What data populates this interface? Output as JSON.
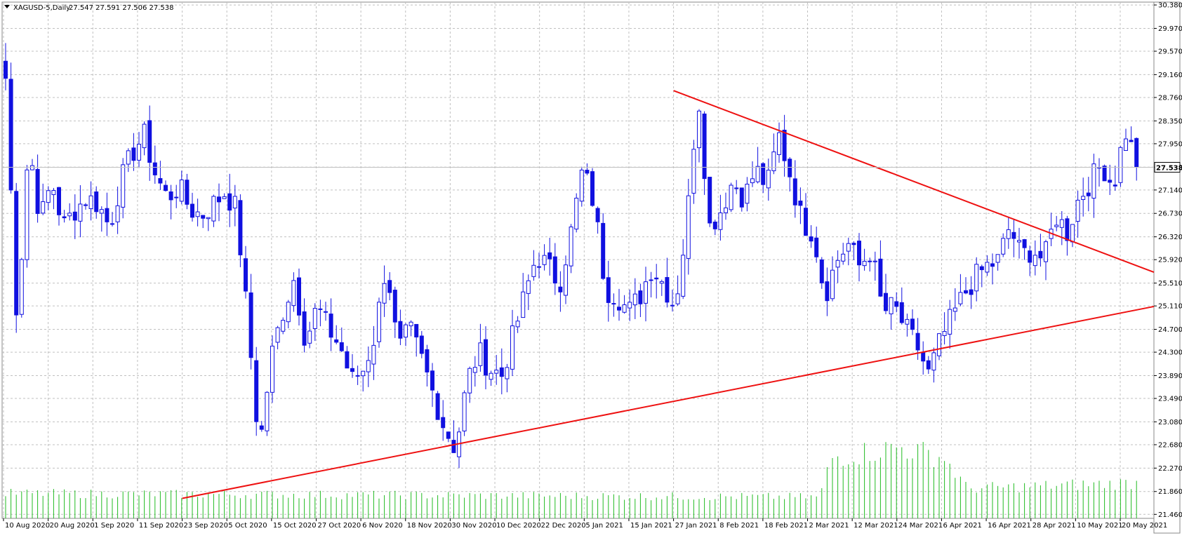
{
  "header": {
    "symbol_label": "XAGUSD-5,Daily",
    "ohlc_label": "27.547 27.591 27.506 27.538"
  },
  "colors": {
    "background": "#ffffff",
    "grid": "#c0c0c0",
    "candle": "#1010e0",
    "volume": "#22bb22",
    "trendline": "#ee1111",
    "price_line": "#c0c0c0",
    "price_tag_bg": "#ffffff"
  },
  "chart_data": {
    "type": "candlestick",
    "symbol": "XAGUSD-5",
    "timeframe": "Daily",
    "current_price": 27.538,
    "y_ticks": [
      "30.380",
      "29.970",
      "29.570",
      "29.160",
      "28.760",
      "28.350",
      "27.950",
      "27.540",
      "27.140",
      "26.730",
      "26.320",
      "25.920",
      "25.510",
      "25.110",
      "24.700",
      "24.300",
      "23.890",
      "23.490",
      "23.080",
      "22.680",
      "22.270",
      "21.860",
      "21.460"
    ],
    "ylim": [
      21.39,
      30.43
    ],
    "x_labels": [
      "10 Aug 2020",
      "20 Aug 2020",
      "1 Sep 2020",
      "11 Sep 2020",
      "23 Sep 2020",
      "5 Oct 2020",
      "15 Oct 2020",
      "27 Oct 2020",
      "6 Nov 2020",
      "18 Nov 2020",
      "30 Nov 2020",
      "10 Dec 2020",
      "22 Dec 2020",
      "5 Jan 2021",
      "15 Jan 2021",
      "27 Jan 2021",
      "8 Feb 2021",
      "18 Feb 2021",
      "2 Mar 2021",
      "12 Mar 2021",
      "24 Mar 2021",
      "6 Apr 2021",
      "16 Apr 2021",
      "28 Apr 2021",
      "10 May 2021",
      "20 May 2021"
    ],
    "close_path": [
      29.1,
      24.8,
      28.0,
      26.6,
      27.3,
      26.5,
      26.8,
      27.0,
      26.9,
      26.5,
      27.3,
      27.8,
      28.1,
      27.4,
      27.0,
      27.2,
      26.8,
      26.7,
      26.9,
      27.1,
      26.8,
      24.8,
      22.6,
      24.2,
      25.0,
      25.6,
      24.5,
      25.1,
      24.7,
      24.4,
      23.8,
      24.0,
      24.6,
      25.9,
      24.3,
      24.7,
      24.2,
      23.6,
      23.0,
      22.6,
      23.8,
      24.3,
      24.0,
      23.9,
      24.6,
      25.3,
      26.0,
      25.8,
      25.5,
      26.4,
      27.5,
      26.9,
      25.4,
      25.3,
      25.0,
      25.3,
      25.8,
      25.5,
      25.1,
      26.5,
      28.9,
      26.5,
      26.8,
      27.3,
      27.0,
      27.5,
      27.2,
      28.1,
      27.4,
      26.6,
      26.4,
      25.3,
      25.9,
      26.2,
      25.8,
      26.1,
      25.0,
      25.1,
      24.7,
      24.4,
      23.9,
      24.5,
      24.9,
      25.3,
      25.6,
      25.8,
      25.9,
      26.5,
      26.0,
      26.1,
      25.9,
      26.7,
      26.4,
      27.0,
      27.3,
      27.6,
      27.2,
      28.2,
      27.6
    ],
    "volume_profile": [
      [
        0,
        0.35
      ],
      [
        0.72,
        0.3
      ],
      [
        0.73,
        0.85
      ],
      [
        0.79,
        1.0
      ],
      [
        0.83,
        0.85
      ],
      [
        0.85,
        0.42
      ],
      [
        1.0,
        0.5
      ]
    ],
    "trendlines": [
      {
        "name": "support",
        "x": [
          "23 Sep 2020",
          "end"
        ],
        "y": [
          21.74,
          25.1
        ]
      },
      {
        "name": "resistance",
        "x": [
          "27 Jan 2021",
          "end"
        ],
        "y": [
          28.88,
          25.7
        ]
      }
    ],
    "grid": true
  }
}
